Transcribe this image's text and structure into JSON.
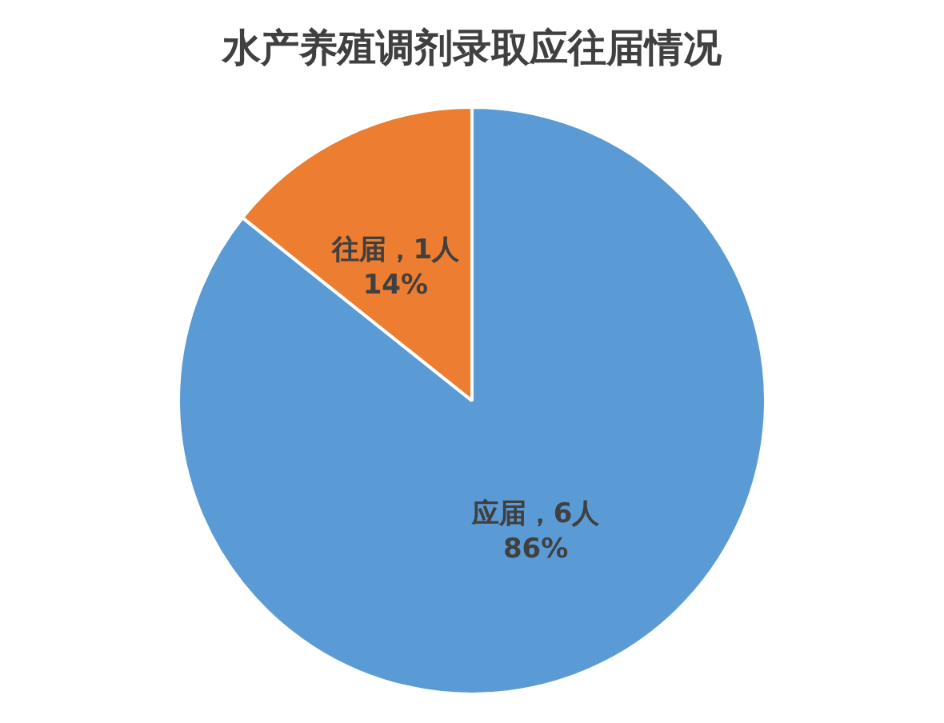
{
  "chart_data": {
    "type": "pie",
    "title": "水产养殖调剂录取应往届情况",
    "categories": [
      "应届",
      "往届"
    ],
    "values": [
      6,
      1
    ],
    "colors": [
      "#5b9bd5",
      "#ed7d31"
    ],
    "value_labels": [
      "，6人\n86%",
      "，1人\n14%"
    ],
    "legend": false
  }
}
